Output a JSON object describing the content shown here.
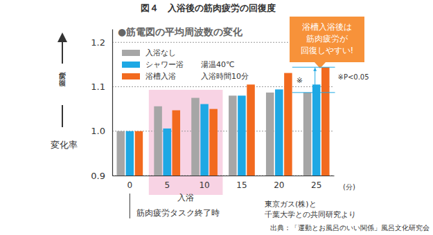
{
  "chart_data": {
    "type": "bar",
    "title": "図４　入浴後の筋肉疲労の回復度",
    "subtitle": "●筋電図の平均周波数の変化",
    "ylabel": "疲労が回復",
    "categories": [
      0,
      5,
      10,
      15,
      20,
      25
    ],
    "series": [
      {
        "name": "入浴なし",
        "color": "#a6a6a6",
        "values": [
          1.0,
          1.056,
          1.075,
          1.08,
          1.087,
          1.087
        ]
      },
      {
        "name": "シャワー浴",
        "color": "#1ea8e4",
        "values": [
          1.0,
          1.006,
          1.061,
          1.08,
          1.094,
          1.105
        ]
      },
      {
        "name": "浴槽入浴",
        "color": "#f26a1f",
        "values": [
          1.0,
          1.047,
          1.05,
          1.105,
          1.131,
          1.144
        ]
      }
    ],
    "ylim": [
      0.9,
      1.23
    ],
    "yticks": [
      0.9,
      {
        "value": 1.0,
        "label": "1.0"
      },
      1.1,
      1.2
    ],
    "grid": true,
    "legend": "top-left",
    "annotations": {
      "y_unit": "変化率",
      "x_unit": "(分)",
      "conditions": [
        "湯温40℃",
        "入浴時間10分"
      ],
      "bath_period": "入浴",
      "baseline": "筋肉疲労タスク終了時",
      "callout": [
        "浴槽入浴後は",
        "筋肉疲労が",
        "回復しやすい!"
      ],
      "significance_mark": "※",
      "significance_note": "※P<0.05",
      "research": [
        "東京ガス(株)と",
        "千葉大学との共同研究より"
      ],
      "source": "出典：「運動とお風呂のいい関係」風呂文化研究会"
    }
  }
}
